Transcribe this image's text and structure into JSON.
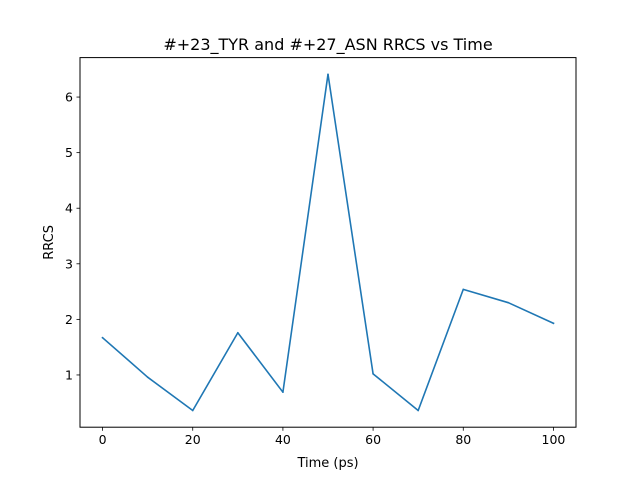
{
  "chart_data": {
    "type": "line",
    "title": "#+23_TYR and #+27_ASN RRCS vs Time",
    "xlabel": "Time (ps)",
    "ylabel": "RRCS",
    "x": [
      0,
      10,
      20,
      30,
      40,
      50,
      60,
      70,
      80,
      90,
      100
    ],
    "series": [
      {
        "values": [
          1.67,
          0.96,
          0.36,
          1.76,
          0.69,
          6.41,
          1.02,
          0.36,
          2.54,
          2.3,
          1.93
        ],
        "color": "#1f77b4"
      }
    ],
    "xlim": [
      -5,
      105
    ],
    "ylim": [
      0.06,
      6.71
    ],
    "xticks": [
      0,
      20,
      40,
      60,
      80,
      100
    ],
    "yticks": [
      1,
      2,
      3,
      4,
      5,
      6
    ],
    "xtick_labels": [
      "0",
      "20",
      "40",
      "60",
      "80",
      "100"
    ],
    "ytick_labels": [
      "1",
      "2",
      "3",
      "4",
      "5",
      "6"
    ],
    "grid": false,
    "legend": "none"
  }
}
